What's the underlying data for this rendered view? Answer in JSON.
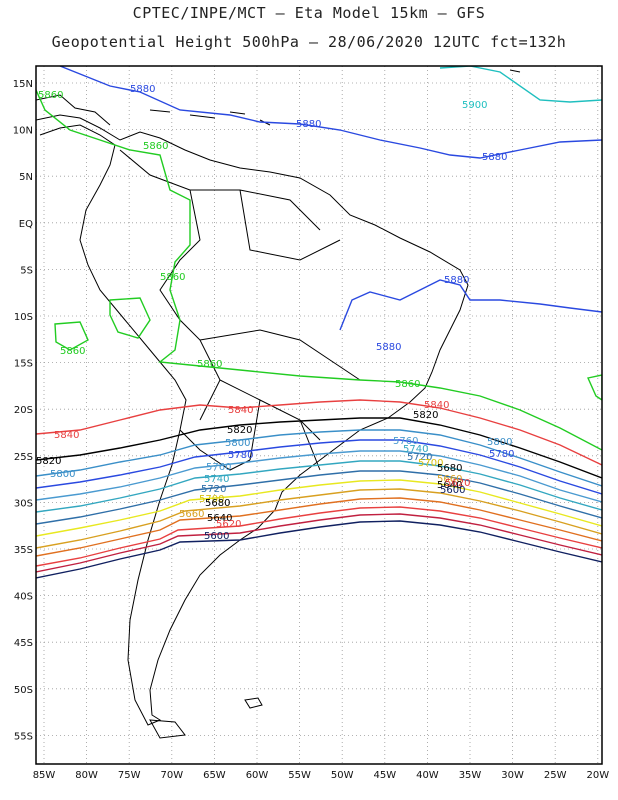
{
  "header": {
    "line1": "CPTEC/INPE/MCT –  Eta Model 15km – GFS",
    "line2": "Geopotential Height 500hPa – 28/06/2020 12UTC fct=132h"
  },
  "axes": {
    "lat_labels": [
      "15N",
      "10N",
      "5N",
      "EQ",
      "5S",
      "10S",
      "15S",
      "20S",
      "25S",
      "30S",
      "35S",
      "40S",
      "45S",
      "50S",
      "55S"
    ],
    "lon_labels": [
      "85W",
      "80W",
      "75W",
      "70W",
      "65W",
      "60W",
      "55W",
      "50W",
      "45W",
      "40W",
      "35W",
      "30W",
      "25W",
      "20W"
    ]
  },
  "colors": {
    "frame": "#000000",
    "grid": "#9a9a9a",
    "coast": "#000000",
    "c5900": "#1fbfbf",
    "c5880": "#2a49e0",
    "c5860": "#22cc22",
    "c5840": "#e84040",
    "c5820": "#000000",
    "c5800": "#3a8fc8",
    "c5780": "#2a49e0",
    "c5760": "#4a9ad0",
    "c5740": "#33a7c0",
    "c5720": "#2f6fa8",
    "c5700": "#e8e820",
    "c5680": "#d8a020",
    "c5660": "#e07020",
    "c5640": "#e84040",
    "c5620": "#c02040",
    "c5600": "#102060"
  },
  "contour_labels": {
    "c5900": "5900",
    "c5880": "5880",
    "c5860": "5860",
    "c5840": "5840",
    "c5820": "5820",
    "c5800": "5800",
    "c5780": "5780",
    "c5760": "5760",
    "c5740": "5740",
    "c5720": "5720",
    "c5700": "5700",
    "c5680": "5680",
    "c5660": "5660",
    "c5640": "5640",
    "c5620": "5620",
    "c5600": "5600"
  }
}
